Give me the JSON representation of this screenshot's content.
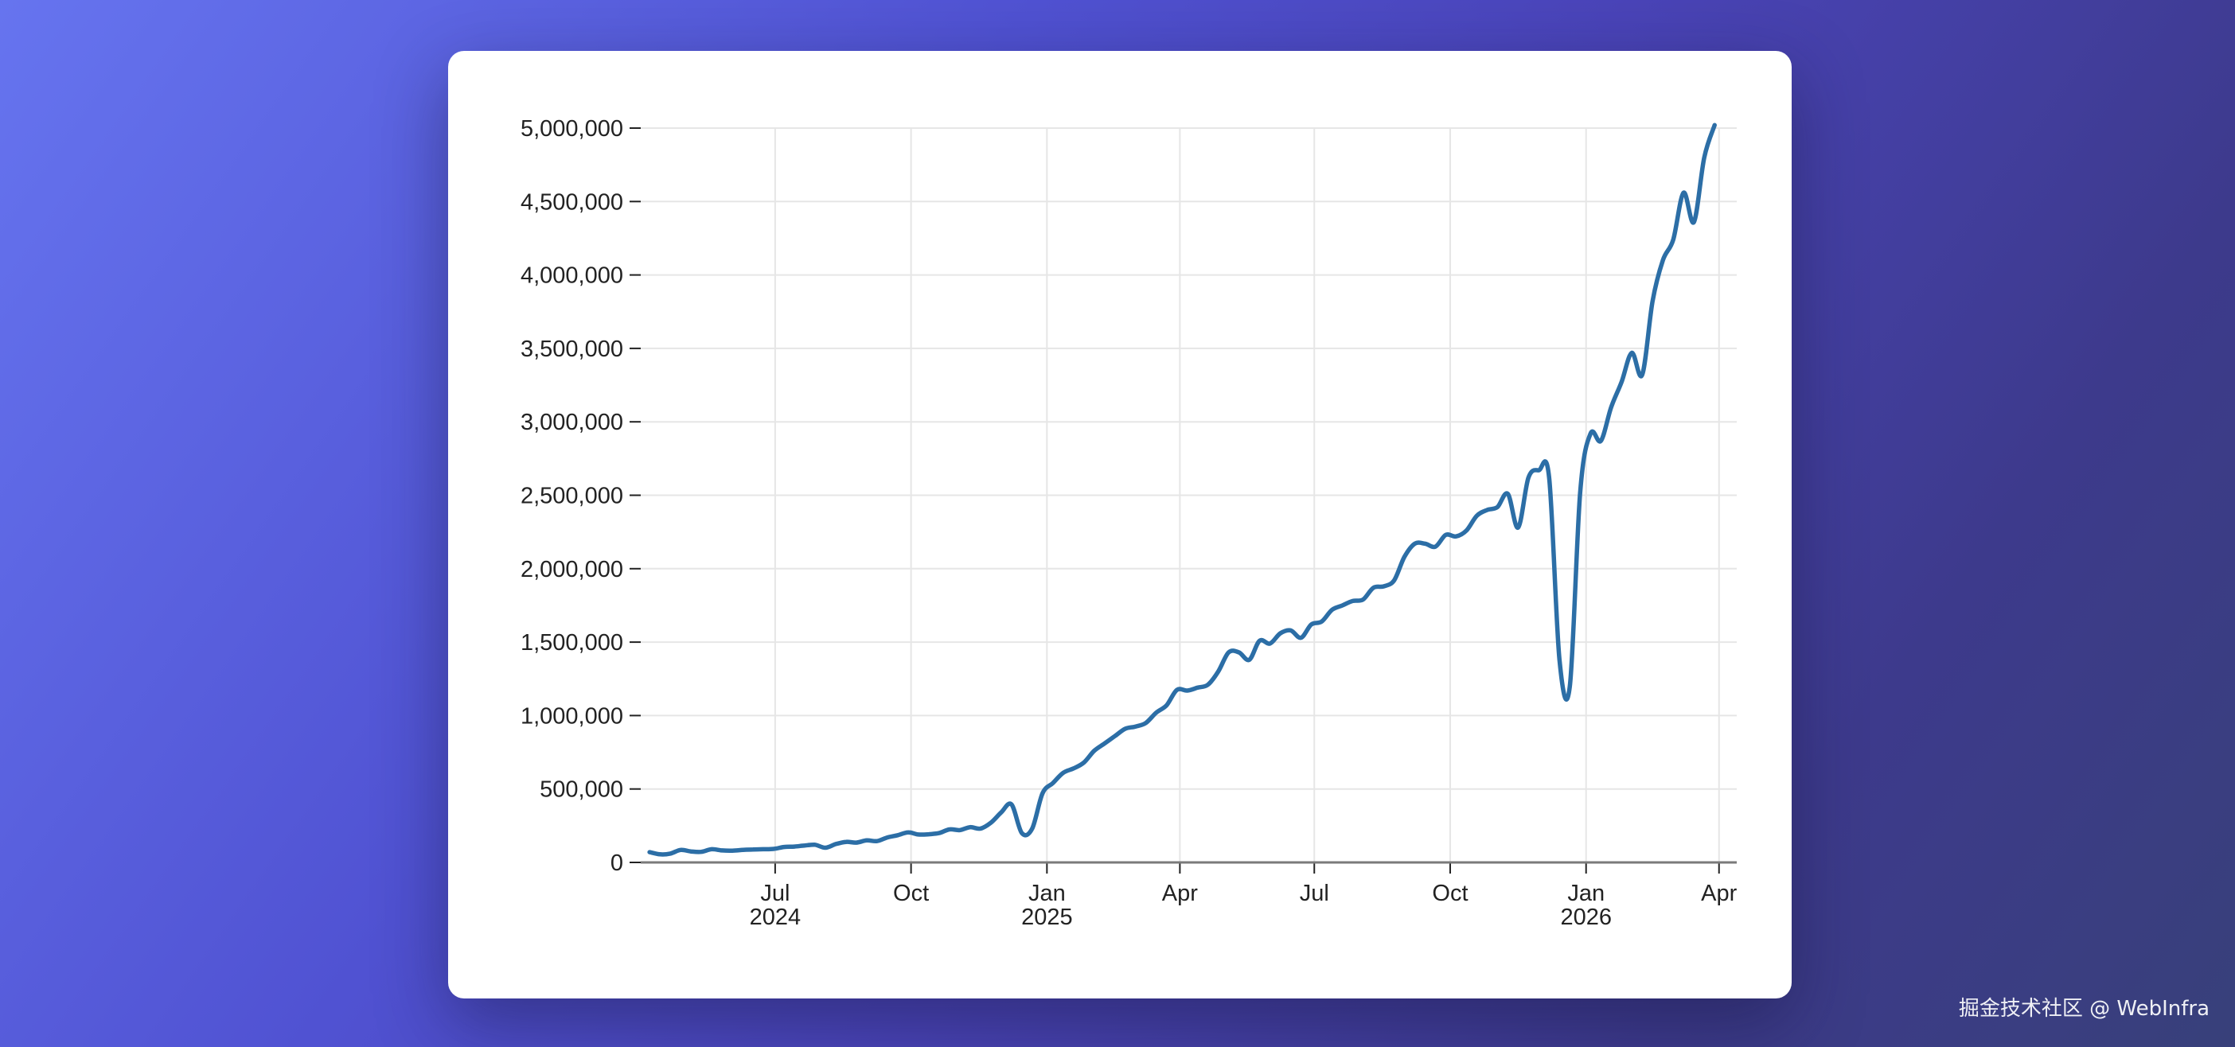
{
  "chart_data": {
    "type": "line",
    "title": "",
    "xlabel": "",
    "ylabel": "",
    "ylim": [
      0,
      5000000
    ],
    "xlim": [
      "2024-04-01",
      "2026-04-13"
    ],
    "grid": true,
    "line_color": "#2c6ea6",
    "y_ticks": [
      {
        "value": 0,
        "label": "0"
      },
      {
        "value": 500000,
        "label": "500,000"
      },
      {
        "value": 1000000,
        "label": "1,000,000"
      },
      {
        "value": 1500000,
        "label": "1,500,000"
      },
      {
        "value": 2000000,
        "label": "2,000,000"
      },
      {
        "value": 2500000,
        "label": "2,500,000"
      },
      {
        "value": 3000000,
        "label": "3,000,000"
      },
      {
        "value": 3500000,
        "label": "3,500,000"
      },
      {
        "value": 4000000,
        "label": "4,000,000"
      },
      {
        "value": 4500000,
        "label": "4,500,000"
      },
      {
        "value": 5000000,
        "label": "5,000,000"
      }
    ],
    "x_ticks": [
      {
        "date": "2024-07-01",
        "label": "Jul",
        "sublabel": "2024"
      },
      {
        "date": "2024-10-01",
        "label": "Oct",
        "sublabel": ""
      },
      {
        "date": "2025-01-01",
        "label": "Jan",
        "sublabel": "2025"
      },
      {
        "date": "2025-04-01",
        "label": "Apr",
        "sublabel": ""
      },
      {
        "date": "2025-07-01",
        "label": "Jul",
        "sublabel": ""
      },
      {
        "date": "2025-10-01",
        "label": "Oct",
        "sublabel": ""
      },
      {
        "date": "2026-01-01",
        "label": "Jan",
        "sublabel": "2026"
      },
      {
        "date": "2026-04-01",
        "label": "Apr",
        "sublabel": ""
      }
    ],
    "series": [
      {
        "name": "",
        "points": [
          [
            "2024-04-07",
            70000
          ],
          [
            "2024-04-14",
            55000
          ],
          [
            "2024-04-21",
            60000
          ],
          [
            "2024-04-28",
            85000
          ],
          [
            "2024-05-05",
            75000
          ],
          [
            "2024-05-12",
            72000
          ],
          [
            "2024-05-19",
            90000
          ],
          [
            "2024-05-26",
            82000
          ],
          [
            "2024-06-02",
            80000
          ],
          [
            "2024-06-09",
            85000
          ],
          [
            "2024-06-16",
            88000
          ],
          [
            "2024-06-23",
            90000
          ],
          [
            "2024-06-30",
            92000
          ],
          [
            "2024-07-07",
            105000
          ],
          [
            "2024-07-14",
            108000
          ],
          [
            "2024-07-21",
            115000
          ],
          [
            "2024-07-28",
            120000
          ],
          [
            "2024-08-04",
            100000
          ],
          [
            "2024-08-11",
            125000
          ],
          [
            "2024-08-18",
            140000
          ],
          [
            "2024-08-25",
            135000
          ],
          [
            "2024-09-01",
            150000
          ],
          [
            "2024-09-08",
            145000
          ],
          [
            "2024-09-15",
            170000
          ],
          [
            "2024-09-22",
            185000
          ],
          [
            "2024-09-29",
            205000
          ],
          [
            "2024-10-06",
            190000
          ],
          [
            "2024-10-13",
            192000
          ],
          [
            "2024-10-20",
            200000
          ],
          [
            "2024-10-27",
            225000
          ],
          [
            "2024-11-03",
            220000
          ],
          [
            "2024-11-10",
            240000
          ],
          [
            "2024-11-17",
            230000
          ],
          [
            "2024-11-24",
            270000
          ],
          [
            "2024-12-01",
            340000
          ],
          [
            "2024-12-08",
            395000
          ],
          [
            "2024-12-15",
            200000
          ],
          [
            "2024-12-22",
            230000
          ],
          [
            "2024-12-29",
            470000
          ],
          [
            "2025-01-05",
            540000
          ],
          [
            "2025-01-12",
            610000
          ],
          [
            "2025-01-19",
            640000
          ],
          [
            "2025-01-26",
            680000
          ],
          [
            "2025-02-02",
            760000
          ],
          [
            "2025-02-09",
            810000
          ],
          [
            "2025-02-16",
            860000
          ],
          [
            "2025-02-23",
            910000
          ],
          [
            "2025-03-02",
            925000
          ],
          [
            "2025-03-09",
            950000
          ],
          [
            "2025-03-16",
            1020000
          ],
          [
            "2025-03-23",
            1070000
          ],
          [
            "2025-03-30",
            1175000
          ],
          [
            "2025-04-06",
            1170000
          ],
          [
            "2025-04-13",
            1190000
          ],
          [
            "2025-04-20",
            1210000
          ],
          [
            "2025-04-27",
            1300000
          ],
          [
            "2025-05-04",
            1430000
          ],
          [
            "2025-05-11",
            1430000
          ],
          [
            "2025-05-18",
            1380000
          ],
          [
            "2025-05-25",
            1510000
          ],
          [
            "2025-06-01",
            1490000
          ],
          [
            "2025-06-08",
            1560000
          ],
          [
            "2025-06-15",
            1580000
          ],
          [
            "2025-06-22",
            1530000
          ],
          [
            "2025-06-29",
            1620000
          ],
          [
            "2025-07-06",
            1640000
          ],
          [
            "2025-07-13",
            1720000
          ],
          [
            "2025-07-20",
            1750000
          ],
          [
            "2025-07-27",
            1780000
          ],
          [
            "2025-08-03",
            1790000
          ],
          [
            "2025-08-10",
            1870000
          ],
          [
            "2025-08-17",
            1880000
          ],
          [
            "2025-08-24",
            1920000
          ],
          [
            "2025-08-31",
            2080000
          ],
          [
            "2025-09-07",
            2170000
          ],
          [
            "2025-09-14",
            2170000
          ],
          [
            "2025-09-21",
            2150000
          ],
          [
            "2025-09-28",
            2230000
          ],
          [
            "2025-10-05",
            2220000
          ],
          [
            "2025-10-12",
            2260000
          ],
          [
            "2025-10-19",
            2360000
          ],
          [
            "2025-10-26",
            2400000
          ],
          [
            "2025-11-02",
            2420000
          ],
          [
            "2025-11-09",
            2510000
          ],
          [
            "2025-11-16",
            2280000
          ],
          [
            "2025-11-23",
            2620000
          ],
          [
            "2025-11-30",
            2670000
          ],
          [
            "2025-12-07",
            2620000
          ],
          [
            "2025-12-14",
            1380000
          ],
          [
            "2025-12-21",
            1200000
          ],
          [
            "2025-12-28",
            2520000
          ],
          [
            "2026-01-04",
            2920000
          ],
          [
            "2026-01-11",
            2870000
          ],
          [
            "2026-01-18",
            3100000
          ],
          [
            "2026-01-25",
            3270000
          ],
          [
            "2026-02-01",
            3470000
          ],
          [
            "2026-02-08",
            3320000
          ],
          [
            "2026-02-15",
            3820000
          ],
          [
            "2026-02-22",
            4100000
          ],
          [
            "2026-03-01",
            4240000
          ],
          [
            "2026-03-08",
            4560000
          ],
          [
            "2026-03-15",
            4360000
          ],
          [
            "2026-03-22",
            4800000
          ],
          [
            "2026-03-29",
            5020000
          ]
        ]
      }
    ]
  },
  "watermark": "掘金技术社区 @ WebInfra"
}
